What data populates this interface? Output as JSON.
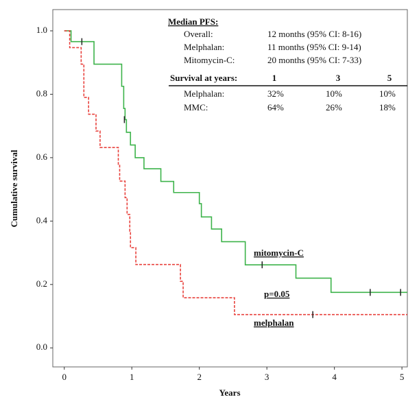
{
  "chart_data": {
    "type": "km-step",
    "x_label": "Years",
    "y_label": "Cumulative survival",
    "xlim": [
      -0.17,
      5.08
    ],
    "ylim": [
      -0.06,
      1.067
    ],
    "xticks": [
      0,
      1,
      2,
      3,
      4,
      5
    ],
    "yticks": [
      {
        "value": 0,
        "label": "0.0"
      },
      0.2,
      0.4,
      0.6,
      0.8,
      {
        "value": 1,
        "label": "1.0"
      }
    ],
    "series": [
      {
        "name": "mitomycin-C",
        "color": "#3cb34a",
        "dashed": false,
        "x": [
          0,
          0.1,
          0.44,
          0.85,
          0.88,
          0.9,
          0.92,
          0.98,
          1.05,
          1.18,
          1.43,
          1.62,
          2.0,
          2.03,
          2.18,
          2.33,
          2.68,
          3.43,
          3.95
        ],
        "values": [
          1,
          0.966,
          0.895,
          0.825,
          0.755,
          0.72,
          0.68,
          0.64,
          0.6,
          0.565,
          0.525,
          0.49,
          0.455,
          0.413,
          0.375,
          0.335,
          0.262,
          0.22,
          0.175
        ],
        "censor_x": [
          0.26,
          0.89,
          2.93,
          4.53,
          4.98
        ],
        "censor_values": [
          0.966,
          0.72,
          0.262,
          0.175,
          0.175
        ]
      },
      {
        "name": "melphalan",
        "color": "#e8413c",
        "dashed": true,
        "x": [
          0,
          0.08,
          0.25,
          0.29,
          0.36,
          0.47,
          0.53,
          0.8,
          0.82,
          0.9,
          0.93,
          0.97,
          0.98,
          1.06,
          1.72,
          1.76,
          2.52
        ],
        "values": [
          1,
          0.947,
          0.895,
          0.79,
          0.737,
          0.684,
          0.632,
          0.579,
          0.526,
          0.474,
          0.421,
          0.368,
          0.316,
          0.263,
          0.21,
          0.158,
          0.105
        ],
        "censor_x": [
          3.68
        ],
        "censor_values": [
          0.105
        ]
      }
    ],
    "annotations": {
      "mitomycin": "mitomycin-C",
      "p_value": "p=0.05",
      "melphalan": "melphalan"
    },
    "info": {
      "median_title": "Median PFS:",
      "median_rows": [
        [
          "Overall:",
          "12 months (95% CI: 8-16)"
        ],
        [
          "Melphalan:",
          "11 months (95% CI: 9-14)"
        ],
        [
          "Mitomycin-C:",
          "20 months (95% CI: 7-33)"
        ]
      ],
      "survival_header": [
        "Survival at years:",
        "1",
        "3",
        "5"
      ],
      "survival_rows": [
        [
          "Melphalan:",
          "32%",
          "10%",
          "10%"
        ],
        [
          "MMC:",
          "64%",
          "26%",
          "18%"
        ]
      ]
    }
  }
}
